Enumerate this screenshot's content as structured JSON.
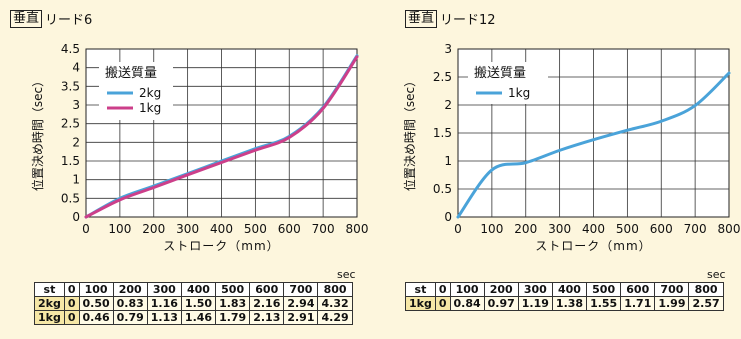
{
  "chart_data": [
    {
      "type": "line",
      "tag": "垂直",
      "title": "リード6",
      "xlabel": "ストローク（mm）",
      "ylabel": "位置決め時間（sec）",
      "xlim": [
        0,
        800
      ],
      "ylim": [
        0,
        4.5
      ],
      "xticks": [
        "0",
        "100",
        "200",
        "300",
        "400",
        "500",
        "600",
        "700",
        "800"
      ],
      "yticks": [
        "0",
        "0.5",
        "1",
        "1.5",
        "2",
        "2.5",
        "3",
        "3.5",
        "4",
        "4.5"
      ],
      "grid": true,
      "legend_title": "搬送質量",
      "legend_position": "top-left",
      "x": [
        0,
        100,
        200,
        300,
        400,
        500,
        600,
        700,
        800
      ],
      "series": [
        {
          "name": "2kg",
          "color": "#4aa3d9",
          "values": [
            0,
            0.5,
            0.83,
            1.16,
            1.5,
            1.83,
            2.16,
            2.94,
            4.32
          ]
        },
        {
          "name": "1kg",
          "color": "#cc3f8a",
          "values": [
            0,
            0.46,
            0.79,
            1.13,
            1.46,
            1.79,
            2.13,
            2.91,
            4.29
          ]
        }
      ]
    },
    {
      "type": "line",
      "tag": "垂直",
      "title": "リード12",
      "xlabel": "ストローク（mm）",
      "ylabel": "位置決め時間（sec）",
      "xlim": [
        0,
        800
      ],
      "ylim": [
        0,
        3
      ],
      "xticks": [
        "0",
        "100",
        "200",
        "300",
        "400",
        "500",
        "600",
        "700",
        "800"
      ],
      "yticks": [
        "0",
        "0.5",
        "1",
        "1.5",
        "2",
        "2.5",
        "3"
      ],
      "grid": true,
      "legend_title": "搬送質量",
      "legend_position": "top-left",
      "x": [
        0,
        100,
        200,
        300,
        400,
        500,
        600,
        700,
        800
      ],
      "series": [
        {
          "name": "1kg",
          "color": "#4aa3d9",
          "values": [
            0,
            0.84,
            0.97,
            1.19,
            1.38,
            1.55,
            1.71,
            1.99,
            2.57
          ]
        }
      ]
    }
  ],
  "tables": {
    "left": {
      "unit": "sec",
      "header": [
        "st",
        "0",
        "100",
        "200",
        "300",
        "400",
        "500",
        "600",
        "700",
        "800"
      ],
      "rows": [
        [
          "2kg",
          "0",
          "0.50",
          "0.83",
          "1.16",
          "1.50",
          "1.83",
          "2.16",
          "2.94",
          "4.32"
        ],
        [
          "1kg",
          "0",
          "0.46",
          "0.79",
          "1.13",
          "1.46",
          "1.79",
          "2.13",
          "2.91",
          "4.29"
        ]
      ]
    },
    "right": {
      "unit": "sec",
      "header": [
        "st",
        "0",
        "100",
        "200",
        "300",
        "400",
        "500",
        "600",
        "700",
        "800"
      ],
      "rows": [
        [
          "1kg",
          "0",
          "0.84",
          "0.97",
          "1.19",
          "1.38",
          "1.55",
          "1.71",
          "1.99",
          "2.57"
        ]
      ]
    }
  }
}
